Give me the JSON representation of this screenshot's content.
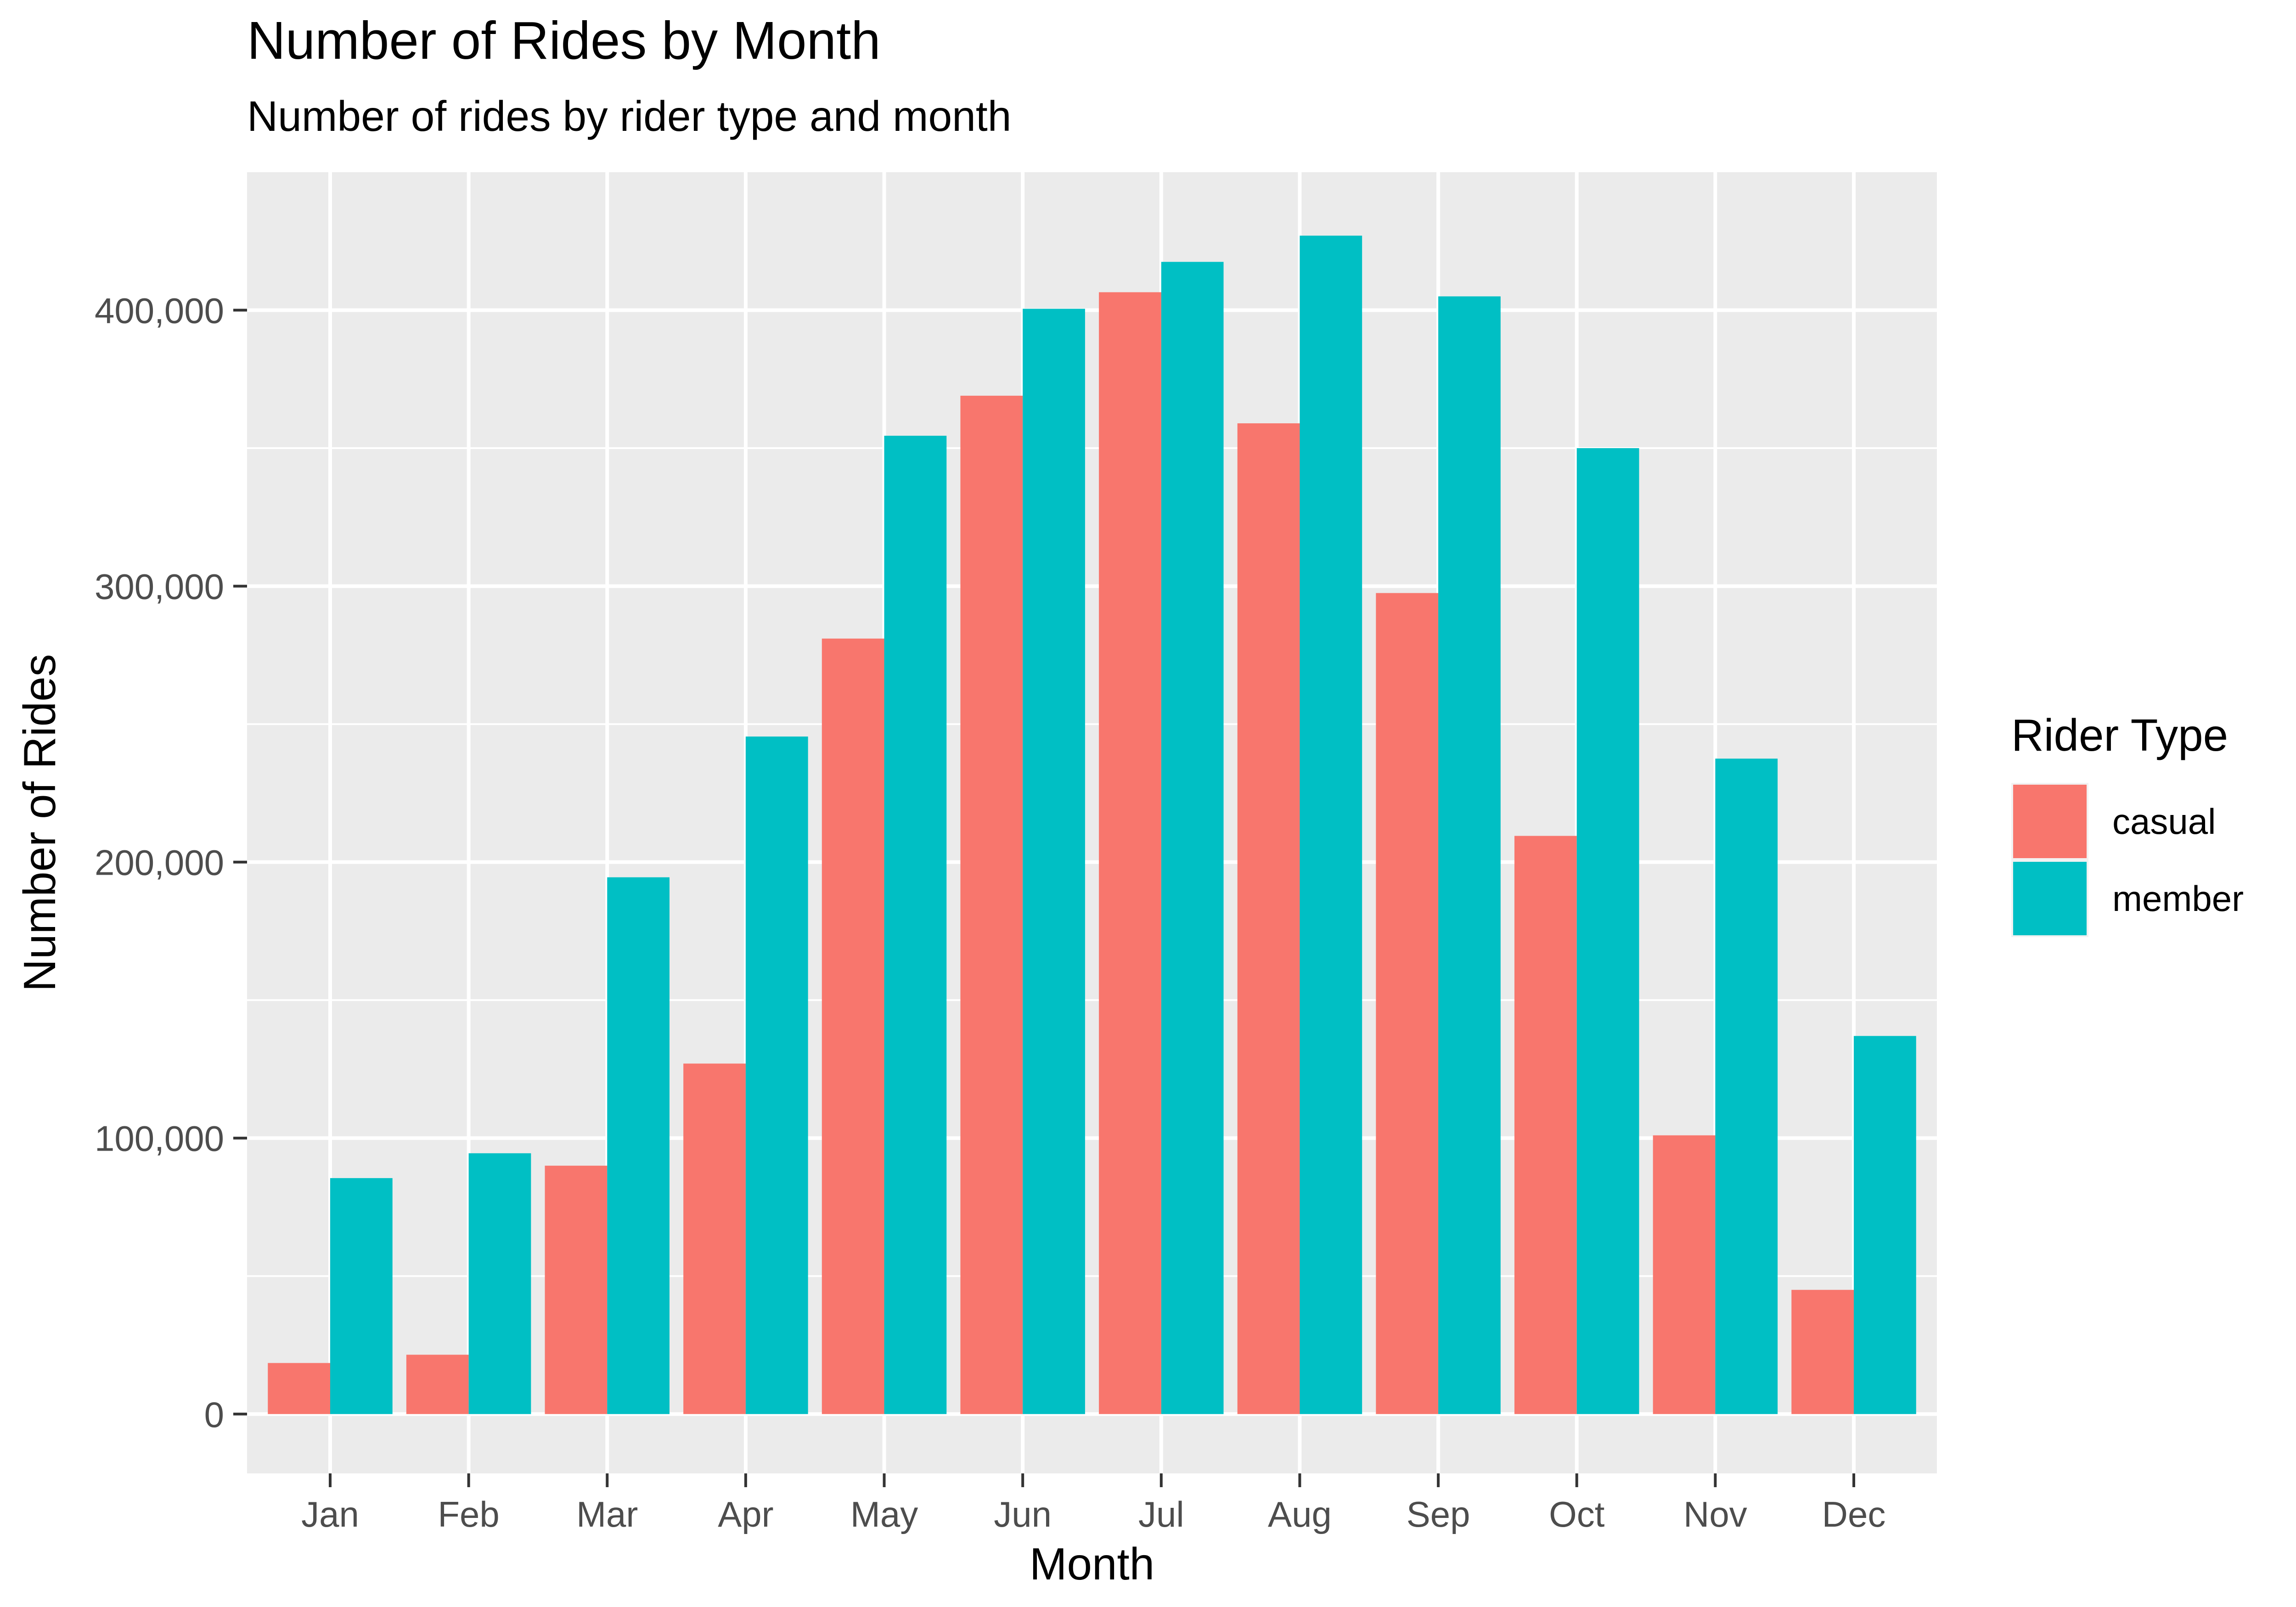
{
  "chart_data": {
    "type": "bar",
    "title": "Number of Rides by Month",
    "subtitle": "Number of rides by rider type and month",
    "xlabel": "Month",
    "ylabel": "Number of Rides",
    "categories": [
      "Jan",
      "Feb",
      "Mar",
      "Apr",
      "May",
      "Jun",
      "Jul",
      "Aug",
      "Sep",
      "Oct",
      "Nov",
      "Dec"
    ],
    "series": [
      {
        "name": "casual",
        "color": "#F8766D",
        "values": [
          18500,
          21500,
          90000,
          127000,
          281000,
          369000,
          406500,
          359000,
          297500,
          209500,
          101000,
          45000
        ]
      },
      {
        "name": "member",
        "color": "#00BFC4",
        "values": [
          85500,
          94500,
          194500,
          245500,
          354500,
          400500,
          417500,
          427000,
          405000,
          350000,
          237500,
          137000
        ]
      }
    ],
    "ylim": [
      -21500,
      450000
    ],
    "y_ticks": [
      0,
      100000,
      200000,
      300000,
      400000
    ],
    "y_tick_labels": [
      "0",
      "100,000",
      "200,000",
      "300,000",
      "400,000"
    ],
    "grid": true,
    "panel_background": "#EBEBEB",
    "legend": {
      "title": "Rider Type",
      "position": "right"
    }
  }
}
